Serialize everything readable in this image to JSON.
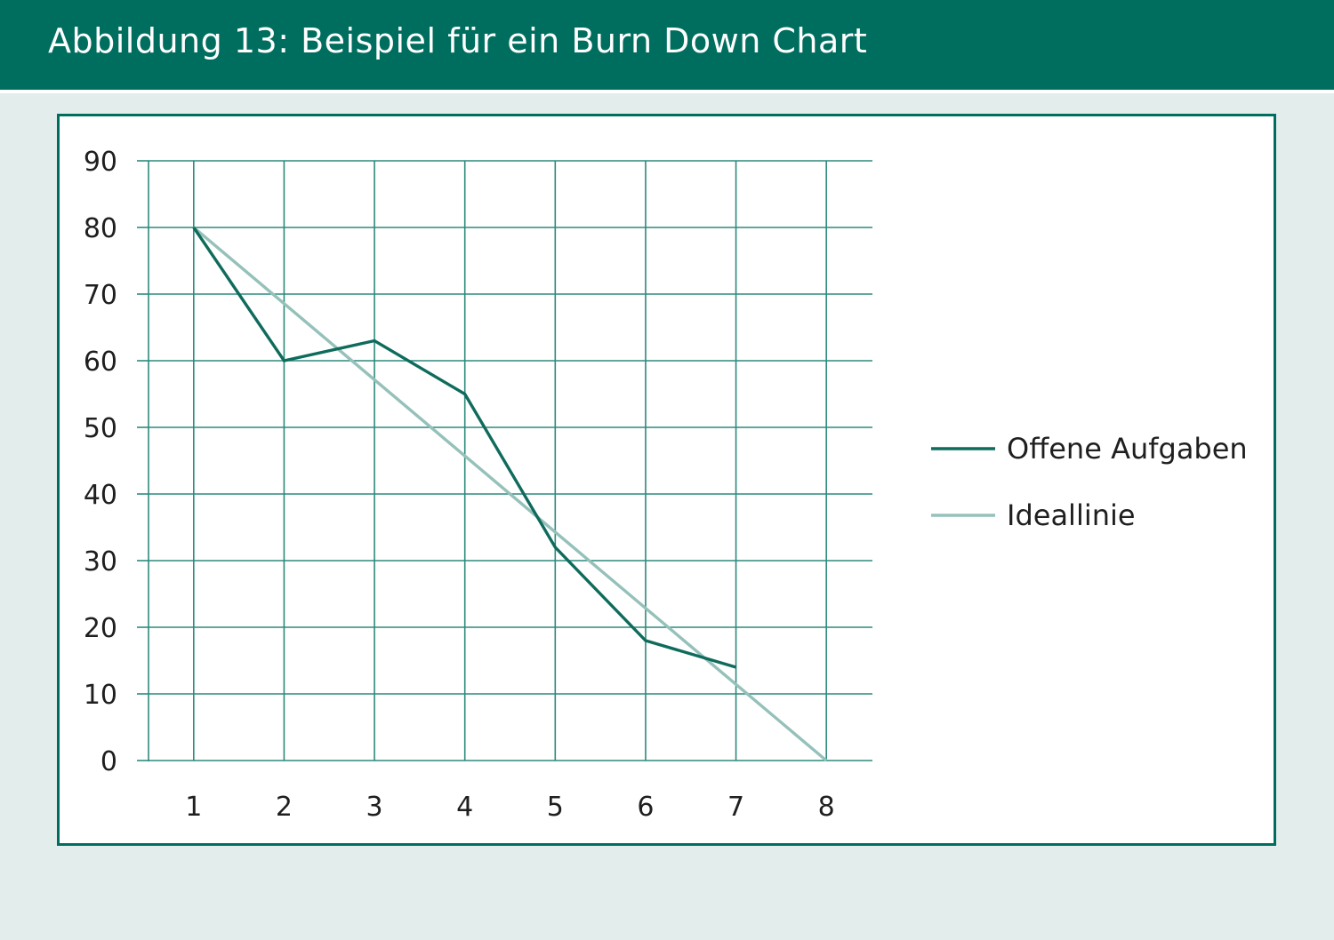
{
  "header": {
    "title": "Abbildung 13: Beispiel für ein Burn Down Chart"
  },
  "colors": {
    "header_bg": "#006e5f",
    "page_bg": "#e3edec",
    "grid": "#2d8a7d",
    "offene": "#0f6b5c",
    "ideal": "#95c1ba"
  },
  "chart_data": {
    "type": "line",
    "title": "",
    "xlabel": "",
    "ylabel": "",
    "x": [
      1,
      2,
      3,
      4,
      5,
      6,
      7,
      8
    ],
    "xlim": [
      0.5,
      8.5
    ],
    "ylim": [
      0,
      90
    ],
    "yticks": [
      0,
      10,
      20,
      30,
      40,
      50,
      60,
      70,
      80,
      90
    ],
    "xticks": [
      "1",
      "2",
      "3",
      "4",
      "5",
      "6",
      "7",
      "8"
    ],
    "grid": true,
    "legend_position": "right",
    "series": [
      {
        "name": "Offene Aufgaben",
        "x": [
          1,
          2,
          3,
          4,
          5,
          6,
          7
        ],
        "values": [
          80,
          60,
          63,
          55,
          32,
          18,
          14
        ]
      },
      {
        "name": "Ideallinie",
        "x": [
          1,
          8
        ],
        "values": [
          80,
          0
        ]
      }
    ]
  }
}
